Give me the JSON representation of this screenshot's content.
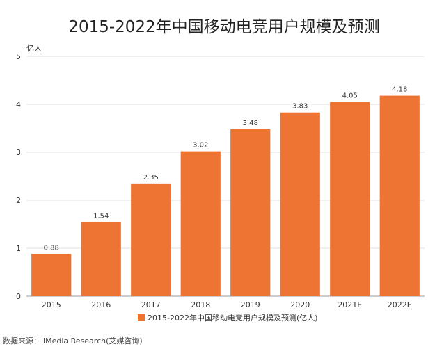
{
  "chart_data": {
    "type": "bar",
    "title": "2015-2022年中国移动电竞用户规模及预测",
    "categories": [
      "2015",
      "2016",
      "2017",
      "2018",
      "2019",
      "2020",
      "2021E",
      "2022E"
    ],
    "values": [
      0.88,
      1.54,
      2.35,
      3.02,
      3.48,
      3.83,
      4.05,
      4.18
    ],
    "value_labels": [
      "0.88",
      "1.54",
      "2.35",
      "3.02",
      "3.48",
      "3.83",
      "4.05",
      "4.18"
    ],
    "ylabel": "亿人",
    "xlabel": "",
    "ylim": [
      0,
      5
    ],
    "yticks": [
      "0",
      "1",
      "2",
      "3",
      "4",
      "5"
    ],
    "grid": true,
    "legend": "bottom",
    "series_name": "2015-2022年中国移动电竞用户规模及预测(亿人)",
    "color": "#EE7433"
  },
  "source": "数据来源：iiMedia Research(艾媒咨询)"
}
